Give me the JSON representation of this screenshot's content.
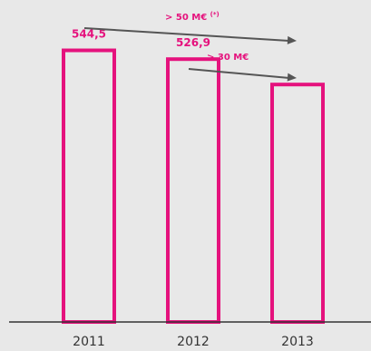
{
  "colors": {
    "background": "#e8e8e8",
    "bar_stroke": "#e5127d",
    "bar_fill": "#e8e8e8",
    "value_label": "#e5127d",
    "axis": "#333333",
    "arrow": "#555555"
  },
  "chart_data": {
    "type": "bar",
    "categories": [
      "2011",
      "2012",
      "2013"
    ],
    "values": [
      544.5,
      526.9,
      476
    ],
    "value_labels": [
      "544,5",
      "526,9",
      ""
    ],
    "ylim": [
      0,
      600
    ],
    "grid": false,
    "annotations": [
      {
        "text": "> 50 M€",
        "superscript": "(*)",
        "arrow": "right"
      },
      {
        "text": "> 30 M€",
        "superscript": "",
        "arrow": "right"
      }
    ]
  }
}
